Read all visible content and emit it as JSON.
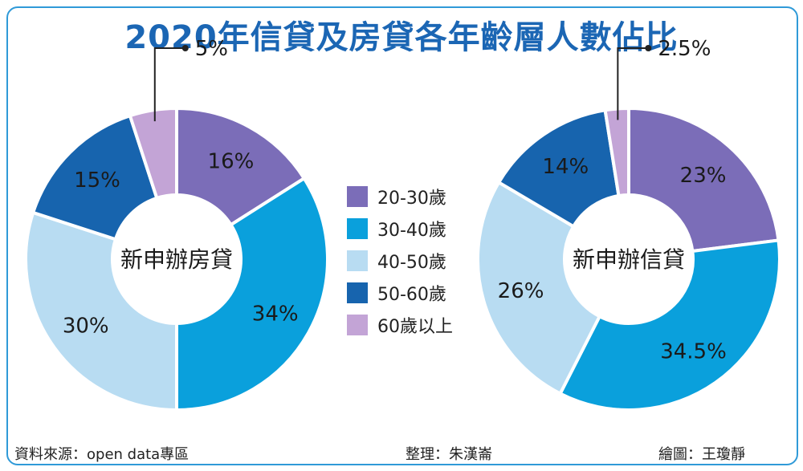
{
  "title": "2020年信貸及房貸各年齡層人數佔比",
  "chart_data": [
    {
      "type": "pie",
      "center_label": "新申辦房貸",
      "categories": [
        "20-30歲",
        "30-40歲",
        "40-50歲",
        "50-60歲",
        "60歲以上"
      ],
      "values": [
        16,
        34,
        30,
        15,
        5
      ],
      "labels": [
        "16%",
        "34%",
        "30%",
        "15%",
        "5%"
      ]
    },
    {
      "type": "pie",
      "center_label": "新申辦信貸",
      "categories": [
        "20-30歲",
        "30-40歲",
        "40-50歲",
        "50-60歲",
        "60歲以上"
      ],
      "values": [
        23,
        34.5,
        26,
        14,
        2.5
      ],
      "labels": [
        "23%",
        "34.5%",
        "26%",
        "14%",
        "2.5%"
      ]
    }
  ],
  "legend": [
    {
      "label": "20-30歲",
      "color": "#7b6db8"
    },
    {
      "label": "30-40歲",
      "color": "#0aa0dc"
    },
    {
      "label": "40-50歲",
      "color": "#b8dcf2"
    },
    {
      "label": "50-60歲",
      "color": "#1764ae"
    },
    {
      "label": "60歲以上",
      "color": "#c3a4d6"
    }
  ],
  "footer": {
    "source": "資料來源：open data專區",
    "editor": "整理：朱漢崙",
    "illustrator": "繪圖：王瓊靜"
  }
}
